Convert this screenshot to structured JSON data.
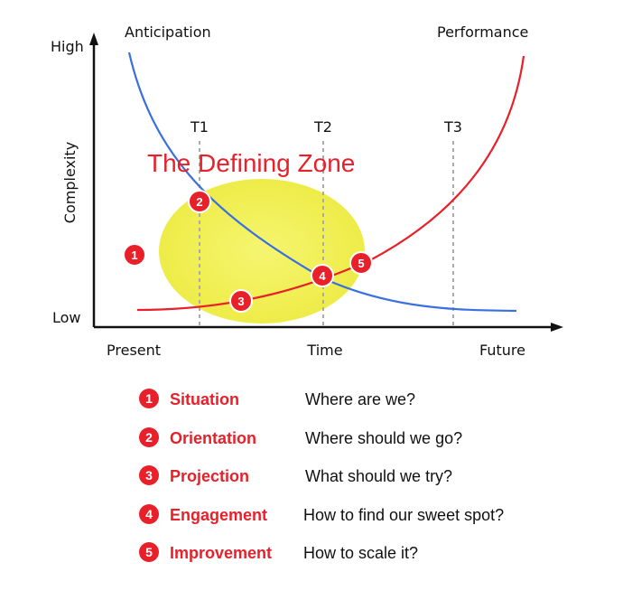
{
  "axes": {
    "y_title": "Complexity",
    "y_high": "High",
    "y_low": "Low",
    "x_start": "Present",
    "x_middle": "Time",
    "x_end": "Future"
  },
  "curves": {
    "anticipation_label": "Anticipation",
    "performance_label": "Performance",
    "anticipation_color": "#3a6fe0",
    "performance_color": "#e8202a"
  },
  "time_markers": [
    {
      "label": "T1"
    },
    {
      "label": "T2"
    },
    {
      "label": "T3"
    }
  ],
  "zone": {
    "title": "The Defining Zone",
    "color": "#f3f25a"
  },
  "badges": [
    {
      "num": "1"
    },
    {
      "num": "2"
    },
    {
      "num": "3"
    },
    {
      "num": "4"
    },
    {
      "num": "5"
    }
  ],
  "legend": [
    {
      "num": "1",
      "name": "Situation",
      "question": "Where are we?"
    },
    {
      "num": "2",
      "name": "Orientation",
      "question": "Where should we go?"
    },
    {
      "num": "3",
      "name": "Projection",
      "question": "What should we try?"
    },
    {
      "num": "4",
      "name": "Engagement",
      "question": "How to find our sweet spot?"
    },
    {
      "num": "5",
      "name": "Improvement",
      "question": "How to scale it?"
    }
  ],
  "accent_color": "#e8202a"
}
